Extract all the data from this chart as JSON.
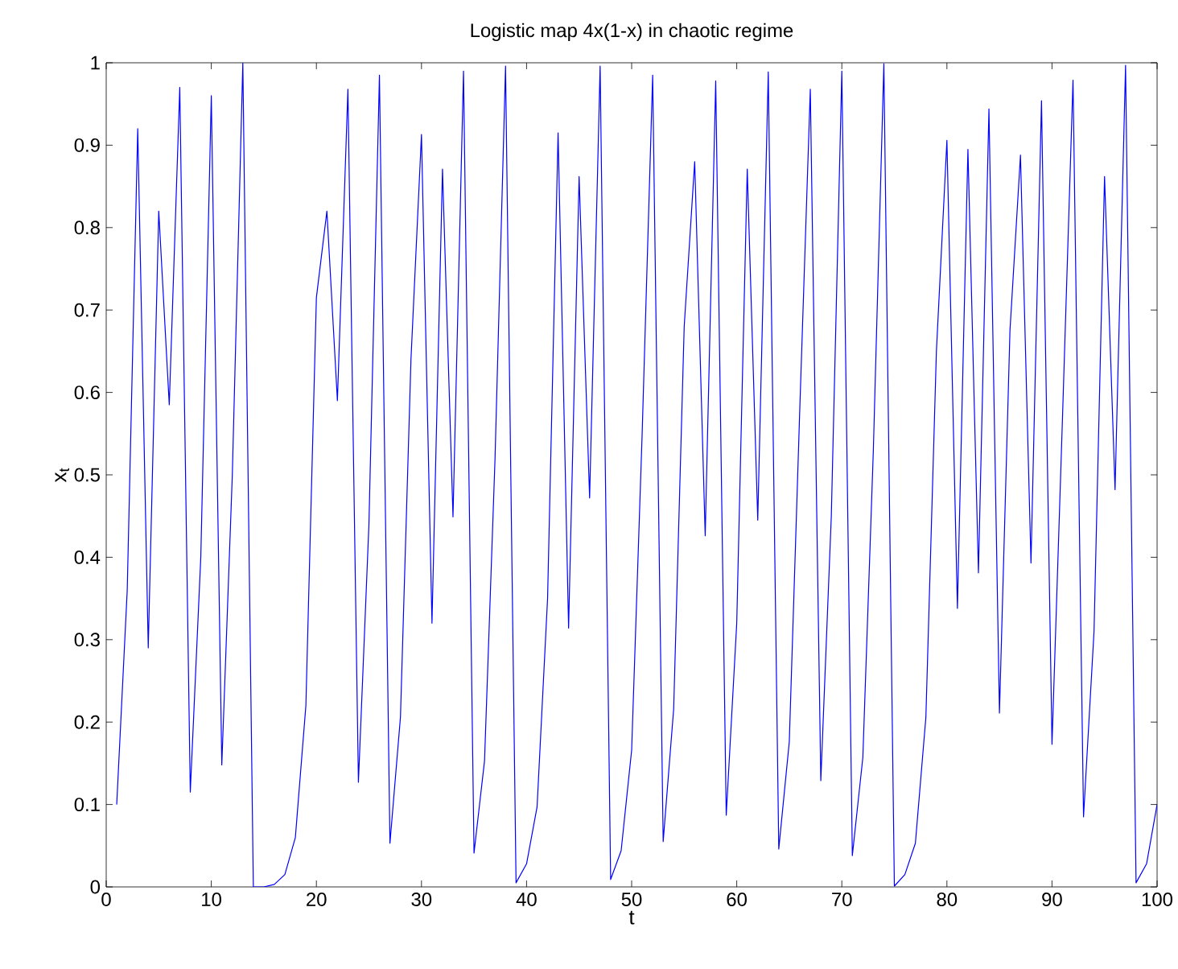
{
  "chart_data": {
    "type": "line",
    "title": "Logistic map 4x(1-x) in chaotic regime",
    "xlabel": "t",
    "ylabel": "x$_{t}$",
    "x": [
      1,
      2,
      3,
      4,
      5,
      6,
      7,
      8,
      9,
      10,
      11,
      12,
      13,
      14,
      15,
      16,
      17,
      18,
      19,
      20,
      21,
      22,
      23,
      24,
      25,
      26,
      27,
      28,
      29,
      30,
      31,
      32,
      33,
      34,
      35,
      36,
      37,
      38,
      39,
      40,
      41,
      42,
      43,
      44,
      45,
      46,
      47,
      48,
      49,
      50,
      51,
      52,
      53,
      54,
      55,
      56,
      57,
      58,
      59,
      60,
      61,
      62,
      63,
      64,
      65,
      66,
      67,
      68,
      69,
      70,
      71,
      72,
      73,
      74,
      75,
      76,
      77,
      78,
      79,
      80,
      81,
      82,
      83,
      84,
      85,
      86,
      87,
      88,
      89,
      90,
      91,
      92,
      93,
      94,
      95,
      96,
      97,
      98,
      99,
      100
    ],
    "series": [
      {
        "color": "#0000ff",
        "values": [
          0.1,
          0.36,
          0.92,
          0.29,
          0.82,
          0.585,
          0.97,
          0.115,
          0.4,
          0.96,
          0.148,
          0.5,
          1.0,
          0.0,
          0.0,
          0.003,
          0.015,
          0.06,
          0.22,
          0.715,
          0.82,
          0.59,
          0.968,
          0.127,
          0.44,
          0.985,
          0.053,
          0.206,
          0.64,
          0.913,
          0.32,
          0.871,
          0.449,
          0.99,
          0.041,
          0.153,
          0.52,
          0.996,
          0.005,
          0.028,
          0.097,
          0.35,
          0.915,
          0.314,
          0.862,
          0.472,
          0.996,
          0.009,
          0.044,
          0.166,
          0.55,
          0.985,
          0.055,
          0.216,
          0.68,
          0.88,
          0.426,
          0.978,
          0.087,
          0.32,
          0.871,
          0.445,
          0.989,
          0.046,
          0.176,
          0.58,
          0.968,
          0.129,
          0.45,
          0.99,
          0.038,
          0.157,
          0.53,
          0.999,
          0.001,
          0.015,
          0.053,
          0.206,
          0.65,
          0.906,
          0.338,
          0.895,
          0.381,
          0.944,
          0.211,
          0.675,
          0.888,
          0.393,
          0.954,
          0.173,
          0.57,
          0.979,
          0.085,
          0.31,
          0.862,
          0.482,
          0.997,
          0.005,
          0.028,
          0.1
        ]
      }
    ],
    "xlim": [
      0,
      100
    ],
    "ylim": [
      0,
      1
    ],
    "xticks": [
      0,
      10,
      20,
      30,
      40,
      50,
      60,
      70,
      80,
      90,
      100
    ],
    "yticks": [
      0,
      0.1,
      0.2,
      0.3,
      0.4,
      0.5,
      0.6,
      0.7,
      0.8,
      0.9,
      1
    ],
    "grid": false,
    "marker": "none",
    "line_style": "solid"
  }
}
